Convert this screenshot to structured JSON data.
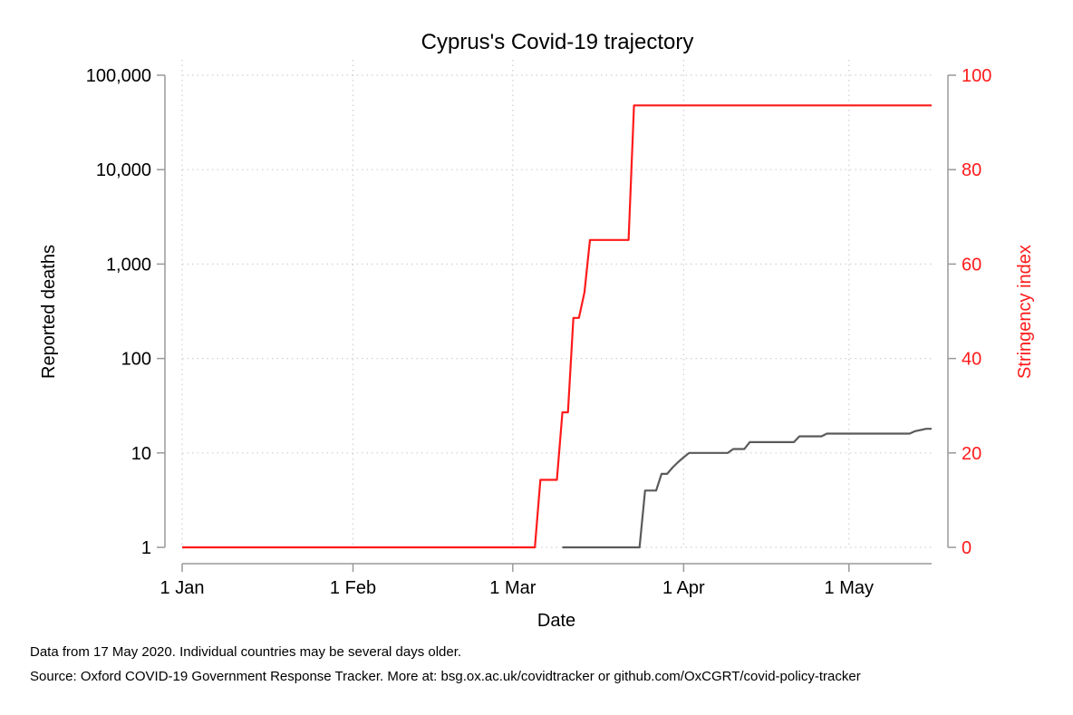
{
  "chart_data": {
    "type": "line",
    "title": "Cyprus's Covid-19 trajectory",
    "xlabel": "Date",
    "ylabel": "Reported deaths",
    "ylabel_right": "Stringency index",
    "y_scale": "log",
    "ylim": [
      1,
      100000
    ],
    "y_ticks": [
      1,
      10,
      100,
      1000,
      10000,
      100000
    ],
    "y_tick_labels": [
      "1",
      "10",
      "100",
      "1,000",
      "10,000",
      "100,000"
    ],
    "ylim_right": [
      0,
      100
    ],
    "y_ticks_right": [
      0,
      20,
      40,
      60,
      80,
      100
    ],
    "y_tick_labels_right": [
      "0",
      "20",
      "40",
      "60",
      "80",
      "100"
    ],
    "xlim": [
      "2020-01-01",
      "2020-05-16"
    ],
    "x_ticks": [
      "2020-01-01",
      "2020-02-01",
      "2020-03-01",
      "2020-04-01",
      "2020-05-01"
    ],
    "x_tick_labels": [
      "1 Jan",
      "1 Feb",
      "1 Mar",
      "1 Apr",
      "1 May"
    ],
    "grid": true,
    "series": [
      {
        "axis": "left",
        "color": "#5a5a5a",
        "points": [
          [
            "2020-03-10",
            1
          ],
          [
            "2020-03-24",
            1
          ],
          [
            "2020-03-25",
            4
          ],
          [
            "2020-03-27",
            4
          ],
          [
            "2020-03-28",
            6
          ],
          [
            "2020-03-29",
            6
          ],
          [
            "2020-03-30",
            7
          ],
          [
            "2020-03-31",
            8
          ],
          [
            "2020-04-01",
            9
          ],
          [
            "2020-04-02",
            10
          ],
          [
            "2020-04-09",
            10
          ],
          [
            "2020-04-10",
            11
          ],
          [
            "2020-04-12",
            11
          ],
          [
            "2020-04-13",
            13
          ],
          [
            "2020-04-21",
            13
          ],
          [
            "2020-04-22",
            15
          ],
          [
            "2020-04-26",
            15
          ],
          [
            "2020-04-27",
            16
          ],
          [
            "2020-05-12",
            16
          ],
          [
            "2020-05-13",
            17
          ],
          [
            "2020-05-15",
            18
          ],
          [
            "2020-05-16",
            18
          ]
        ]
      },
      {
        "axis": "right",
        "color": "#ff1a1a",
        "points": [
          [
            "2020-01-01",
            0
          ],
          [
            "2020-03-05",
            0
          ],
          [
            "2020-03-06",
            14.3
          ],
          [
            "2020-03-09",
            14.3
          ],
          [
            "2020-03-10",
            28.6
          ],
          [
            "2020-03-11",
            28.6
          ],
          [
            "2020-03-12",
            48.6
          ],
          [
            "2020-03-13",
            48.6
          ],
          [
            "2020-03-14",
            54.0
          ],
          [
            "2020-03-15",
            65.1
          ],
          [
            "2020-03-22",
            65.1
          ],
          [
            "2020-03-23",
            93.6
          ],
          [
            "2020-05-16",
            93.6
          ]
        ]
      }
    ]
  },
  "notes": {
    "line1": "Data from 17 May 2020. Individual countries may be several days older.",
    "line2": "Source: Oxford COVID-19 Government Response Tracker. More at: bsg.ox.ac.uk/covidtracker or github.com/OxCGRT/covid-policy-tracker"
  }
}
